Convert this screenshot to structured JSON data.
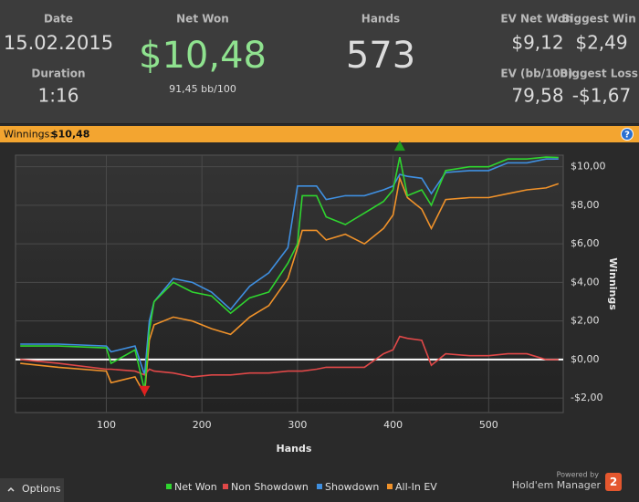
{
  "header": {
    "date_label": "Date",
    "date": "15.02.2015",
    "duration_label": "Duration",
    "duration": "1:16",
    "net_won_label": "Net Won",
    "net_won": "$10,48",
    "bb_per_100": "91,45 bb/100",
    "hands_label": "Hands",
    "hands": "573",
    "ev_net_won_label": "EV Net Won",
    "ev_net_won": "$9,12",
    "biggest_win_label": "Biggest Win",
    "biggest_win": "$2,49",
    "ev_bb_label": "EV (bb/100)",
    "ev_bb": "79,58",
    "biggest_loss_label": "Biggest Loss",
    "biggest_loss": "-$1,67"
  },
  "banner": {
    "label": "Winnings:",
    "value": "$10,48",
    "help": "?"
  },
  "footer": {
    "options": "Options",
    "powered_by": "Powered by",
    "brand": "Hold'em Manager",
    "brand_version": "2"
  },
  "chart_data": {
    "type": "line",
    "xlabel": "Hands",
    "ylabel": "Winnings",
    "x": [
      10,
      50,
      100,
      105,
      130,
      140,
      145,
      150,
      170,
      190,
      210,
      230,
      250,
      270,
      290,
      300,
      305,
      320,
      330,
      350,
      370,
      390,
      400,
      407,
      415,
      430,
      440,
      455,
      480,
      500,
      520,
      540,
      560,
      573
    ],
    "series": [
      {
        "name": "Net Won",
        "color": "#2fd52f",
        "values": [
          0.7,
          0.7,
          0.6,
          -0.2,
          0.5,
          -1.6,
          1.5,
          3,
          4,
          3.5,
          3.3,
          2.4,
          3.2,
          3.5,
          5,
          6,
          8.5,
          8.5,
          7.4,
          7,
          7.6,
          8.2,
          8.8,
          10.5,
          8.5,
          8.8,
          8,
          9.8,
          10,
          10,
          10.4,
          10.4,
          10.5,
          10.48
        ]
      },
      {
        "name": "Non Showdown",
        "color": "#e04848",
        "values": [
          0,
          -0.2,
          -0.5,
          -0.5,
          -0.6,
          -0.8,
          -0.5,
          -0.6,
          -0.7,
          -0.9,
          -0.8,
          -0.8,
          -0.7,
          -0.7,
          -0.6,
          -0.6,
          -0.6,
          -0.5,
          -0.4,
          -0.4,
          -0.4,
          0.3,
          0.5,
          1.2,
          1.1,
          1.0,
          -0.3,
          0.3,
          0.2,
          0.2,
          0.3,
          0.3,
          0,
          0
        ]
      },
      {
        "name": "Showdown",
        "color": "#3f8fe0",
        "values": [
          0.8,
          0.8,
          0.7,
          0.4,
          0.7,
          -0.8,
          2,
          3,
          4.2,
          4,
          3.5,
          2.6,
          3.8,
          4.5,
          5.8,
          9,
          9,
          9,
          8.3,
          8.5,
          8.5,
          8.8,
          9,
          9.6,
          9.5,
          9.4,
          8.6,
          9.7,
          9.8,
          9.8,
          10.2,
          10.2,
          10.4,
          10.4
        ]
      },
      {
        "name": "All-In EV",
        "color": "#f0922a",
        "values": [
          -0.2,
          -0.4,
          -0.6,
          -1.2,
          -0.9,
          -1.8,
          1,
          1.8,
          2.2,
          2,
          1.6,
          1.3,
          2.2,
          2.8,
          4.2,
          5.8,
          6.7,
          6.7,
          6.2,
          6.5,
          6,
          6.8,
          7.5,
          9.4,
          8.4,
          7.8,
          6.8,
          8.3,
          8.4,
          8.4,
          8.6,
          8.8,
          8.9,
          9.12
        ]
      }
    ],
    "xlim": [
      5,
      578
    ],
    "ylim": [
      -2.75,
      10.6
    ],
    "xticks": [
      100,
      200,
      300,
      400,
      500
    ],
    "yticks": [
      {
        "value": -2,
        "label": "-$2,00"
      },
      {
        "value": 0,
        "label": "$0,00"
      },
      {
        "value": 2,
        "label": "$2,00"
      },
      {
        "value": 4,
        "label": "$4,00"
      },
      {
        "value": 6,
        "label": "$6,00"
      },
      {
        "value": 8,
        "label": "$8,00"
      },
      {
        "value": 10,
        "label": "$10,00"
      }
    ],
    "grid": true
  }
}
